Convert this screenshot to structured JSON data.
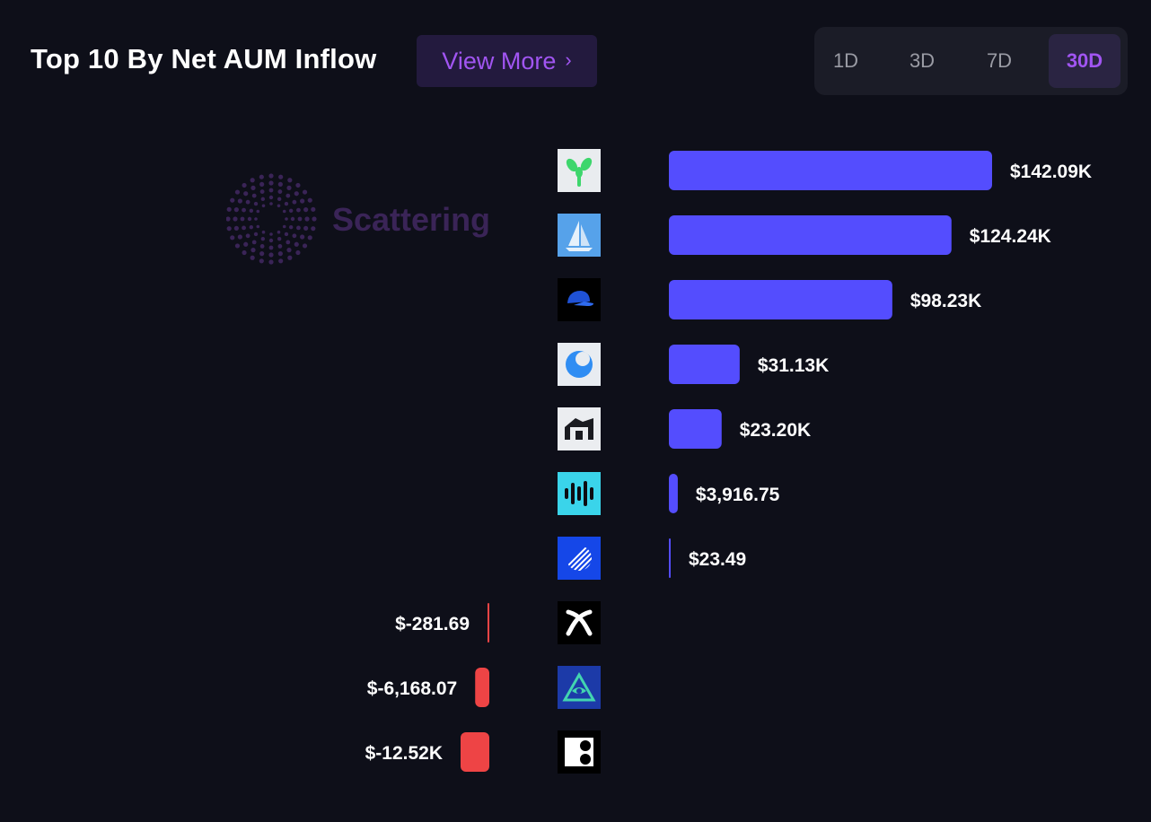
{
  "header": {
    "title": "Top 10 By Net AUM Inflow",
    "view_more_label": "View More",
    "view_more_icon": "chevron-right-icon"
  },
  "range": {
    "options": [
      "1D",
      "3D",
      "7D",
      "30D"
    ],
    "selected": "30D"
  },
  "watermark": {
    "text": "Scattering"
  },
  "colors": {
    "background": "#0e0f19",
    "positive_bar": "#544dfe",
    "negative_bar": "#ee4445",
    "accent": "#a155f2"
  },
  "chart_data": {
    "type": "bar",
    "orientation": "horizontal",
    "title": "Top 10 By Net AUM Inflow",
    "unit": "USD",
    "values": [
      142090,
      124240,
      98230,
      31130,
      23200,
      3916.75,
      23.49,
      -281.69,
      -6168.07,
      -12520
    ],
    "labels": [
      "$142.09K",
      "$124.24K",
      "$98.23K",
      "$31.13K",
      "$23.20K",
      "$3,916.75",
      "$23.49",
      "$-281.69",
      "$-6,168.07",
      "$-12.52K"
    ],
    "icons": [
      "sprout-icon",
      "sailboat-icon",
      "cap-icon",
      "half-moon-icon",
      "arch-icon",
      "waveform-icon",
      "striped-circle-icon",
      "knot-icon",
      "eye-pyramid-icon",
      "dots-block-icon"
    ]
  }
}
